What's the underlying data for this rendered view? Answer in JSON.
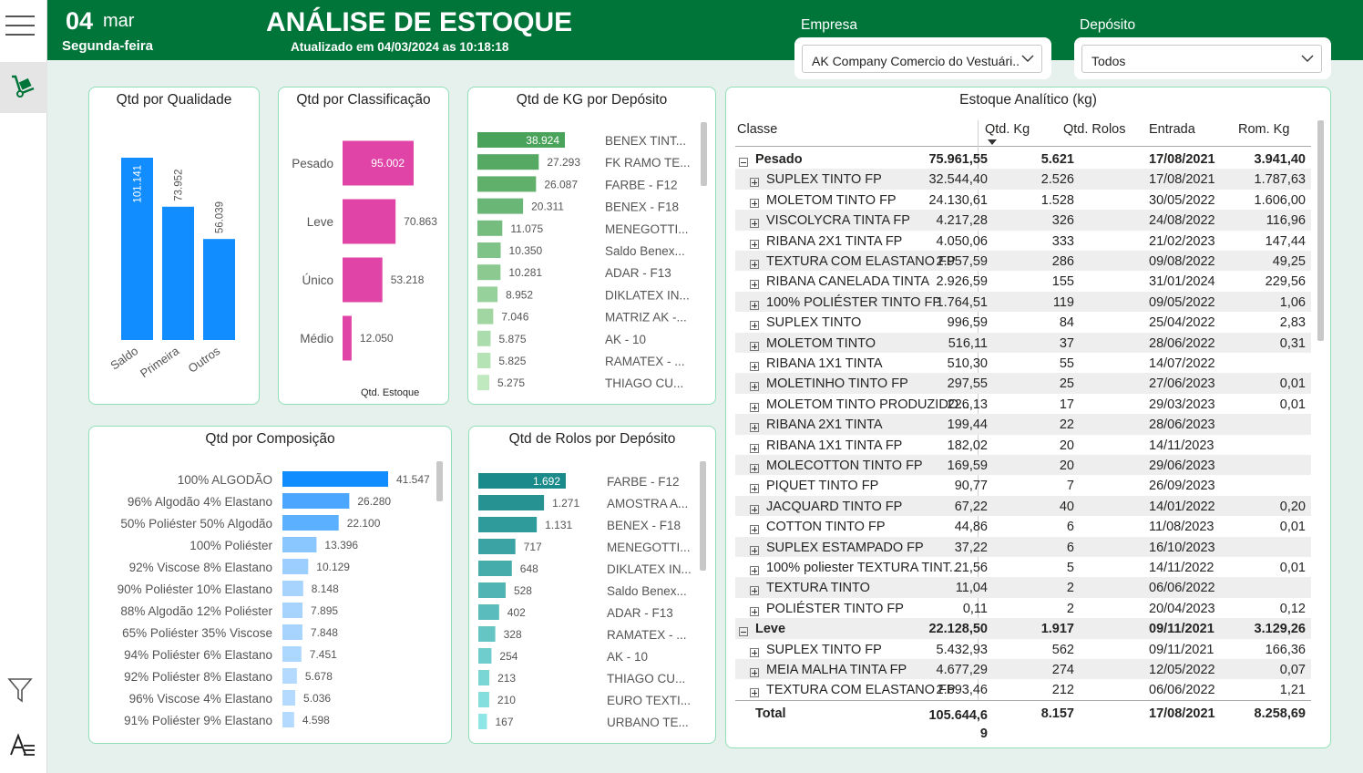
{
  "header": {
    "day": "04",
    "month": "mar",
    "weekday": "Segunda-feira",
    "title": "ANÁLISE DE ESTOQUE",
    "updated": "Atualizado em 04/03/2024 as 10:18:18"
  },
  "filters": {
    "empresa_label": "Empresa",
    "empresa_value": "AK Company Comercio do Vestuári...",
    "deposito_label": "Depósito",
    "deposito_value": "Todos"
  },
  "icons": {
    "menu": "hamburger-menu-icon",
    "stock": "hand-truck-icon",
    "filter": "filter-icon",
    "logo": "brand-logo-icon"
  },
  "colors": {
    "header": "#00753a",
    "panel_border": "#8fe0b8",
    "qualidade": "#118dff",
    "classificacao": "#e044a7",
    "composicao": "#118dff"
  },
  "qualidade": {
    "title": "Qtd por Qualidade",
    "chart_data": {
      "type": "bar",
      "categories": [
        "Saldo",
        "Primeira",
        "Outros"
      ],
      "values": [
        101141,
        73952,
        56039
      ],
      "labels": [
        "101.141",
        "73.952",
        "56.039"
      ]
    }
  },
  "classificacao": {
    "title": "Qtd por Classificação",
    "xlabel": "Qtd. Estoque",
    "chart_data": {
      "type": "bar",
      "categories": [
        "Pesado",
        "Leve",
        "Único",
        "Médio"
      ],
      "values": [
        95002,
        70863,
        53218,
        12050
      ],
      "labels": [
        "95.002",
        "70.863",
        "53.218",
        "12.050"
      ]
    }
  },
  "kg_deposito": {
    "title": "Qtd de KG por Depósito",
    "chart_data": {
      "type": "bar",
      "categories": [
        "BENEX TINT...",
        "FK RAMO TE...",
        "FARBE - F12",
        "BENEX - F18",
        "MENEGOTTI...",
        "Saldo Benex...",
        "ADAR - F13",
        "DIKLATEX IN...",
        "MATRIZ AK -...",
        "AK - 10",
        "RAMATEX - ...",
        "THIAGO CU..."
      ],
      "values": [
        38924,
        27293,
        26087,
        20311,
        11075,
        10350,
        10281,
        8952,
        7046,
        5875,
        5825,
        5275
      ],
      "labels": [
        "38.924",
        "27.293",
        "26.087",
        "20.311",
        "11.075",
        "10.350",
        "10.281",
        "8.952",
        "7.046",
        "5.875",
        "5.825",
        "5.275"
      ]
    }
  },
  "composicao": {
    "title": "Qtd por Composição",
    "chart_data": {
      "type": "bar",
      "categories": [
        "100% ALGODÃO",
        "96% Algodão 4% Elastano",
        "50% Poliéster 50% Algodão",
        "100% Poliéster",
        "92% Viscose 8% Elastano",
        "90% Poliéster 10% Elastano",
        "88% Algodão 12% Poliéster",
        "65% Poliéster 35% Viscose",
        "94% Poliéster 6% Elastano",
        "92% Poliéster 8% Elastano",
        "96% Viscose 4% Elastano",
        "91% Poliéster 9% Elastano"
      ],
      "values": [
        41547,
        26280,
        22100,
        13396,
        10129,
        8148,
        7895,
        7848,
        7451,
        5678,
        5036,
        4598
      ],
      "labels": [
        "41.547",
        "26.280",
        "22.100",
        "13.396",
        "10.129",
        "8.148",
        "7.895",
        "7.848",
        "7.451",
        "5.678",
        "5.036",
        "4.598"
      ]
    }
  },
  "rolos_deposito": {
    "title": "Qtd de Rolos por Depósito",
    "chart_data": {
      "type": "bar",
      "categories": [
        "FARBE - F12",
        "AMOSTRA A...",
        "BENEX - F18",
        "MENEGOTTI...",
        "DIKLATEX IN...",
        "Saldo Benex...",
        "ADAR - F13",
        "RAMATEX - ...",
        "AK - 10",
        "THIAGO CU...",
        "EURO TEXTI...",
        "URBANO TE..."
      ],
      "values": [
        1692,
        1271,
        1131,
        717,
        648,
        528,
        402,
        328,
        254,
        213,
        210,
        167
      ],
      "labels": [
        "1.692",
        "1.271",
        "1.131",
        "717",
        "648",
        "528",
        "402",
        "328",
        "254",
        "213",
        "210",
        "167"
      ]
    }
  },
  "table": {
    "title": "Estoque Analítico (kg)",
    "headers": [
      "Classe",
      "Qtd. Kg",
      "Qtd. Rolos",
      "Entrada",
      "Rom. Kg"
    ],
    "rows": [
      {
        "group": true,
        "expanded": true,
        "cells": [
          "Pesado",
          "75.961,55",
          "5.621",
          "17/08/2021",
          "3.941,40"
        ]
      },
      {
        "cells": [
          "SUPLEX TINTO FP",
          "32.544,40",
          "2.526",
          "17/08/2021",
          "1.787,63"
        ]
      },
      {
        "cells": [
          "MOLETOM TINTO FP",
          "24.130,61",
          "1.528",
          "30/05/2022",
          "1.606,00"
        ]
      },
      {
        "cells": [
          "VISCOLYCRA TINTA FP",
          "4.217,28",
          "326",
          "24/08/2022",
          "116,96"
        ]
      },
      {
        "cells": [
          "RIBANA 2X1 TINTA FP",
          "4.050,06",
          "333",
          "21/02/2023",
          "147,44"
        ]
      },
      {
        "cells": [
          "TEXTURA COM ELASTANO FP",
          "2.957,59",
          "286",
          "09/08/2022",
          "49,25"
        ]
      },
      {
        "cells": [
          "RIBANA CANELADA TINTA",
          "2.926,59",
          "155",
          "31/01/2024",
          "229,56"
        ]
      },
      {
        "cells": [
          "100% POLIÉSTER TINTO FP",
          "1.764,51",
          "119",
          "09/05/2022",
          "1,06"
        ]
      },
      {
        "cells": [
          "SUPLEX TINTO",
          "996,59",
          "84",
          "25/04/2022",
          "2,83"
        ]
      },
      {
        "cells": [
          "MOLETOM TINTO",
          "516,11",
          "37",
          "28/06/2022",
          "0,31"
        ]
      },
      {
        "cells": [
          "RIBANA 1X1 TINTA",
          "510,30",
          "55",
          "14/07/2022",
          ""
        ]
      },
      {
        "cells": [
          "MOLETINHO TINTO FP",
          "297,55",
          "25",
          "27/06/2023",
          "0,01"
        ]
      },
      {
        "cells": [
          "MOLETOM TINTO PRODUZIDO...",
          "226,13",
          "17",
          "29/03/2023",
          "0,01"
        ]
      },
      {
        "cells": [
          "RIBANA 2X1 TINTA",
          "199,44",
          "22",
          "28/06/2023",
          ""
        ]
      },
      {
        "cells": [
          "RIBANA 1X1 TINTA FP",
          "182,02",
          "20",
          "14/11/2023",
          ""
        ]
      },
      {
        "cells": [
          "MOLECOTTON TINTO FP",
          "169,59",
          "20",
          "29/06/2023",
          ""
        ]
      },
      {
        "cells": [
          "PIQUET TINTO FP",
          "90,77",
          "7",
          "26/09/2023",
          ""
        ]
      },
      {
        "cells": [
          "JACQUARD TINTO FP",
          "67,22",
          "40",
          "14/01/2022",
          "0,20"
        ]
      },
      {
        "cells": [
          "COTTON TINTO FP",
          "44,86",
          "6",
          "11/08/2023",
          "0,01"
        ]
      },
      {
        "cells": [
          "SUPLEX ESTAMPADO FP",
          "37,22",
          "6",
          "16/10/2023",
          ""
        ]
      },
      {
        "cells": [
          "100% poliester TEXTURA TINT...",
          "21,56",
          "5",
          "14/11/2022",
          "0,01"
        ]
      },
      {
        "cells": [
          "TEXTURA TINTO",
          "11,04",
          "2",
          "06/06/2022",
          ""
        ]
      },
      {
        "cells": [
          "POLIÉSTER TINTO FP",
          "0,11",
          "2",
          "20/04/2023",
          "0,12"
        ]
      },
      {
        "group": true,
        "expanded": true,
        "cells": [
          "Leve",
          "22.128,50",
          "1.917",
          "09/11/2021",
          "3.129,26"
        ]
      },
      {
        "cells": [
          "SUPLEX TINTO FP",
          "5.432,93",
          "562",
          "09/11/2021",
          "166,36"
        ]
      },
      {
        "cells": [
          "MEIA MALHA TINTA FP",
          "4.677,29",
          "274",
          "12/05/2022",
          "0,07"
        ]
      },
      {
        "cells": [
          "TEXTURA COM ELASTANO FP",
          "2.693,46",
          "212",
          "06/06/2022",
          "1,21"
        ]
      }
    ],
    "total": {
      "label": "Total",
      "qtd_kg_line1": "105.644,6",
      "qtd_kg_line2": "9",
      "qtd_rolos": "8.157",
      "entrada": "17/08/2021",
      "rom_kg": "8.258,69"
    }
  }
}
